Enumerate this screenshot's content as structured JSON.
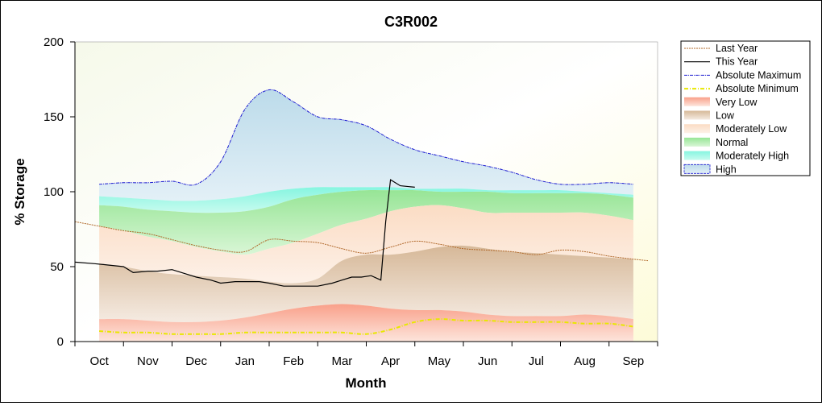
{
  "chart_data": {
    "type": "area",
    "title": "C3R002",
    "xlabel": "Month",
    "ylabel": "% Storage",
    "categories": [
      "Oct",
      "Nov",
      "Dec",
      "Jan",
      "Feb",
      "Mar",
      "Apr",
      "May",
      "Jun",
      "Jul",
      "Aug",
      "Sep"
    ],
    "x_range": [
      -0.5,
      11.5
    ],
    "ylim": [
      0,
      200
    ],
    "y_ticks": [
      0,
      50,
      100,
      150,
      200
    ],
    "grid": false,
    "legend_position": "right",
    "legend": [
      "Last Year",
      "This Year",
      "Absolute Maximum",
      "Absolute Minimum",
      "Very Low",
      "Low",
      "Moderately Low",
      "Normal",
      "Moderately High",
      "High"
    ],
    "bands": {
      "x": [
        0,
        0.5,
        1,
        1.5,
        2,
        2.5,
        3,
        3.5,
        4,
        4.5,
        5,
        5.5,
        6,
        6.5,
        7,
        7.5,
        8,
        8.5,
        9,
        9.5,
        10,
        10.5,
        11
      ],
      "very_low_top": [
        15,
        15,
        14,
        13,
        13,
        14,
        16,
        19,
        22,
        24,
        25,
        24,
        22,
        21,
        21,
        20,
        18,
        17,
        17,
        17,
        18,
        17,
        15
      ],
      "low_top": [
        52,
        50,
        47,
        45,
        44,
        43,
        42,
        40,
        39,
        42,
        54,
        58,
        58,
        60,
        63,
        64,
        62,
        60,
        59,
        58,
        57,
        56,
        55
      ],
      "moderately_low_top": [
        77,
        74,
        70,
        67,
        63,
        60,
        58,
        62,
        66,
        72,
        78,
        82,
        87,
        90,
        91,
        89,
        86,
        86,
        86,
        86,
        86,
        84,
        81
      ],
      "normal_top": [
        91,
        90,
        88,
        87,
        86,
        86,
        87,
        90,
        95,
        98,
        100,
        101,
        101,
        101,
        100,
        100,
        100,
        99,
        99,
        99,
        99,
        98,
        96
      ],
      "moderately_high_top": [
        97,
        96,
        95,
        94,
        94,
        95,
        97,
        100,
        102,
        103,
        103,
        103,
        103,
        102,
        102,
        102,
        101,
        101,
        101,
        101,
        100,
        99,
        98
      ],
      "high_top": [
        105,
        106,
        106,
        107,
        105,
        120,
        155,
        168,
        160,
        150,
        148,
        144,
        135,
        128,
        124,
        120,
        117,
        113,
        108,
        105,
        105,
        106,
        105
      ]
    },
    "series": [
      {
        "name": "Last Year",
        "x": [
          -0.5,
          0,
          0.5,
          1,
          1.5,
          2,
          2.5,
          3,
          3.5,
          4,
          4.5,
          5,
          5.5,
          6,
          6.5,
          7,
          7.5,
          8,
          8.5,
          9,
          9.5,
          10,
          10.5,
          11,
          11.3
        ],
        "values": [
          80,
          77,
          74,
          72,
          68,
          64,
          61,
          60,
          68,
          67,
          66,
          62,
          59,
          63,
          67,
          65,
          62,
          61,
          60,
          58,
          61,
          60,
          57,
          55,
          54
        ]
      },
      {
        "name": "This Year",
        "x": [
          -0.5,
          -0.1,
          0.2,
          0.5,
          0.7,
          1,
          1.2,
          1.5,
          1.8,
          2,
          2.3,
          2.5,
          2.8,
          3,
          3.3,
          3.5,
          3.8,
          4,
          4.3,
          4.5,
          4.8,
          5,
          5.2,
          5.4,
          5.6,
          5.8,
          5.9,
          6,
          6.2,
          6.5
        ],
        "values": [
          53,
          52,
          51,
          50,
          46,
          47,
          47,
          48,
          45,
          43,
          41,
          39,
          40,
          40,
          40,
          39,
          37,
          37,
          37,
          37,
          39,
          41,
          43,
          43,
          44,
          41,
          80,
          108,
          104,
          103
        ]
      },
      {
        "name": "Absolute Maximum",
        "x": [
          0,
          0.5,
          1,
          1.5,
          2,
          2.5,
          3,
          3.5,
          4,
          4.5,
          5,
          5.5,
          6,
          6.5,
          7,
          7.5,
          8,
          8.5,
          9,
          9.5,
          10,
          10.5,
          11
        ],
        "values": [
          105,
          106,
          106,
          107,
          105,
          120,
          155,
          168,
          160,
          150,
          148,
          144,
          135,
          128,
          124,
          120,
          117,
          113,
          108,
          105,
          105,
          106,
          105
        ]
      },
      {
        "name": "Absolute Minimum",
        "x": [
          0,
          0.5,
          1,
          1.5,
          2,
          2.5,
          3,
          3.5,
          4,
          4.5,
          5,
          5.5,
          6,
          6.5,
          7,
          7.5,
          8,
          8.5,
          9,
          9.5,
          10,
          10.5,
          11
        ],
        "values": [
          7,
          6,
          6,
          5,
          5,
          5,
          6,
          6,
          6,
          6,
          6,
          5,
          8,
          13,
          15,
          14,
          14,
          13,
          13,
          13,
          12,
          12,
          10
        ]
      }
    ]
  }
}
